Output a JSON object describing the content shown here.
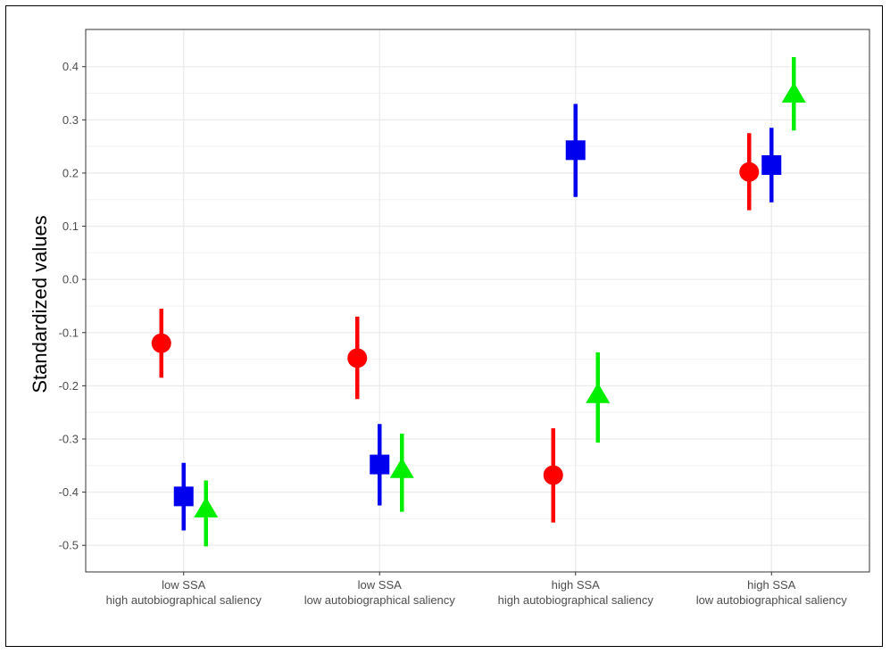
{
  "chart_data": {
    "type": "scatter",
    "ylabel": "Standardized values",
    "xlabel": "",
    "ylim": [
      -0.55,
      0.47
    ],
    "y_ticks": [
      "-0.5",
      "-0.4",
      "-0.3",
      "-0.2",
      "-0.1",
      "0.0",
      "0.1",
      "0.2",
      "0.3",
      "0.4"
    ],
    "y_tick_values": [
      -0.5,
      -0.4,
      -0.3,
      -0.2,
      -0.1,
      0.0,
      0.1,
      0.2,
      0.3,
      0.4
    ],
    "categories": [
      {
        "line1": "low SSA",
        "line2": "high autobiographical saliency"
      },
      {
        "line1": "low SSA",
        "line2": "low autobiographical saliency"
      },
      {
        "line1": "high SSA",
        "line2": "high autobiographical saliency"
      },
      {
        "line1": "high SSA",
        "line2": "low autobiographical saliency"
      }
    ],
    "grid": true,
    "series": [
      {
        "shape": "circle",
        "color": "#ff0000",
        "points": [
          {
            "y": -0.12,
            "lo": -0.185,
            "hi": -0.055
          },
          {
            "y": -0.148,
            "lo": -0.225,
            "hi": -0.07
          },
          {
            "y": -0.368,
            "lo": -0.457,
            "hi": -0.28
          },
          {
            "y": 0.202,
            "lo": 0.13,
            "hi": 0.275
          }
        ]
      },
      {
        "shape": "square",
        "color": "#0000ee",
        "points": [
          {
            "y": -0.408,
            "lo": -0.472,
            "hi": -0.345
          },
          {
            "y": -0.348,
            "lo": -0.425,
            "hi": -0.272
          },
          {
            "y": 0.243,
            "lo": 0.155,
            "hi": 0.33
          },
          {
            "y": 0.215,
            "lo": 0.145,
            "hi": 0.285
          }
        ]
      },
      {
        "shape": "triangle",
        "color": "#00ee00",
        "points": [
          {
            "y": -0.432,
            "lo": -0.502,
            "hi": -0.378
          },
          {
            "y": -0.358,
            "lo": -0.437,
            "hi": -0.29
          },
          {
            "y": -0.217,
            "lo": -0.307,
            "hi": -0.137
          },
          {
            "y": 0.348,
            "lo": 0.28,
            "hi": 0.418
          }
        ]
      }
    ]
  }
}
